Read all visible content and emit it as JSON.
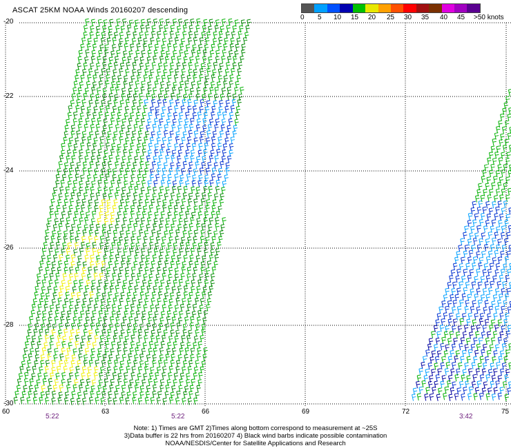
{
  "title": "ASCAT 25KM NOAA Winds 20160207 descending",
  "legend": {
    "colors": [
      "#555555",
      "#00a0ff",
      "#0050ff",
      "#0000b0",
      "#00c000",
      "#e8e800",
      "#ffa000",
      "#ff5000",
      "#ff0000",
      "#a01010",
      "#7a3000",
      "#e000e0",
      "#a000c0",
      "#5a0090"
    ],
    "labels": [
      "0",
      "5",
      "10",
      "15",
      "20",
      "25",
      "30",
      "35",
      "40",
      "45",
      ">50 knots"
    ]
  },
  "axes": {
    "lat_labels": [
      "-20",
      "-22",
      "-24",
      "-26",
      "-28",
      "-30"
    ],
    "lon_labels": [
      "60",
      "63",
      "66",
      "69",
      "72",
      "75"
    ]
  },
  "pass_times": [
    "5:22",
    "5:22",
    "3:42"
  ],
  "notes": [
    "Note: 1) Times are GMT 2)Times along bottom correspond to measurement at ~25S",
    "3)Data buffer is 22 hrs from 20160207 4) Black wind barbs indicate possible contamination",
    "NOAA/NESDIS/Center for Satellite Applications and Research"
  ]
}
